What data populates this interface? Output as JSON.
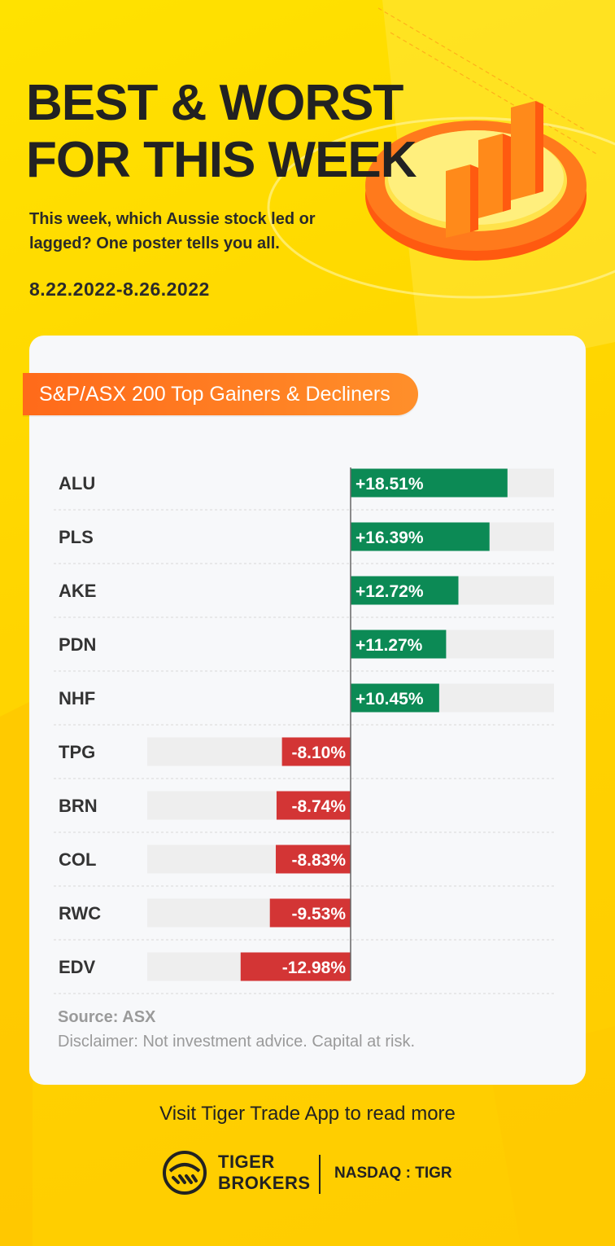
{
  "header": {
    "title_line1": "BEST & WORST",
    "title_line2": "FOR THIS WEEK",
    "subtitle": "This week, which Aussie stock led or lagged? One poster tells you all.",
    "date_range": "8.22.2022-8.26.2022"
  },
  "card": {
    "pill_label": "S&P/ASX 200 Top Gainers & Decliners",
    "source": "Source: ASX",
    "disclaimer": "Disclaimer: Not investment advice. Capital at risk."
  },
  "chart_data": {
    "type": "bar",
    "orientation": "horizontal-diverging",
    "title": "S&P/ASX 200 Top Gainers & Decliners",
    "categories": [
      "ALU",
      "PLS",
      "AKE",
      "PDN",
      "NHF",
      "TPG",
      "BRN",
      "COL",
      "RWC",
      "EDV"
    ],
    "values": [
      18.51,
      16.39,
      12.72,
      11.27,
      10.45,
      -8.1,
      -8.74,
      -8.83,
      -9.53,
      -12.98
    ],
    "labels": [
      "+18.51%",
      "+16.39%",
      "+12.72%",
      "+11.27%",
      "+10.45%",
      "-8.10%",
      "-8.74%",
      "-8.83%",
      "-9.53%",
      "-12.98%"
    ],
    "value_unit": "%",
    "xlim": [
      -24,
      24
    ],
    "colors": {
      "gain": "#0c8a55",
      "loss": "#d33535",
      "track": "#eeeeee"
    }
  },
  "footer": {
    "visit_text": "Visit Tiger Trade App to read more",
    "brand_line1": "TIGER",
    "brand_line2": "BROKERS",
    "ticker_label": "NASDAQ",
    "ticker_separator": ":",
    "ticker_symbol": "TIGR"
  },
  "icons": {
    "logo": "tiger-logo-icon",
    "decoration": "bar-chart-3d-icon"
  }
}
